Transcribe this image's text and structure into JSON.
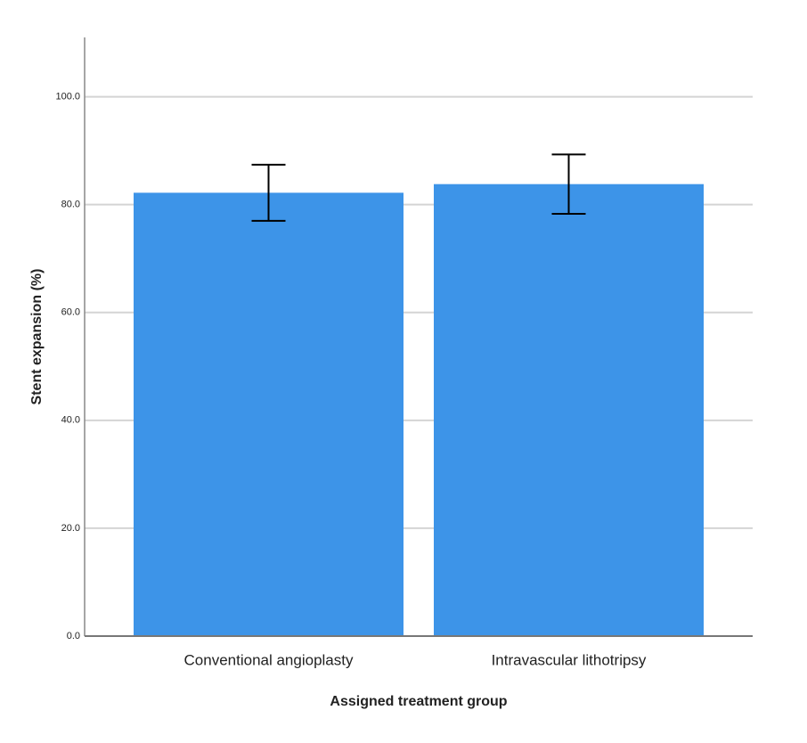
{
  "chart_data": {
    "type": "bar",
    "x_label": "Assigned treatment group",
    "y_label": "Stent expansion (%)",
    "categories": [
      "Conventional angioplasty",
      "Intravascular lithotripsy"
    ],
    "values": [
      82.2,
      83.8
    ],
    "errors": [
      5.2,
      5.5
    ],
    "color": "#3d94e8",
    "ylim": [
      0,
      111
    ],
    "yticks": [
      {
        "value": 0,
        "label": "0.0"
      },
      {
        "value": 20,
        "label": "20.0"
      },
      {
        "value": 40,
        "label": "40.0"
      },
      {
        "value": 60,
        "label": "60.0"
      },
      {
        "value": 80,
        "label": "80.0"
      },
      {
        "value": 100,
        "label": "100.0"
      }
    ],
    "grid": true
  }
}
